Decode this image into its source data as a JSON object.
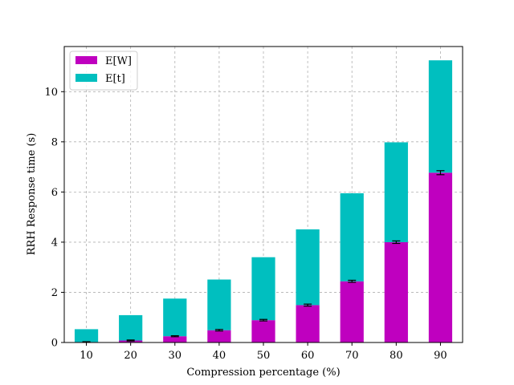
{
  "chart_data": {
    "type": "bar",
    "stacked": true,
    "categories": [
      "10",
      "20",
      "30",
      "40",
      "50",
      "60",
      "70",
      "80",
      "90"
    ],
    "series": [
      {
        "name": "E[W]",
        "color": "#bf00bf",
        "values": [
          0.02,
          0.08,
          0.25,
          0.49,
          0.89,
          1.49,
          2.44,
          4.0,
          6.77
        ],
        "error": [
          0.01,
          0.02,
          0.02,
          0.03,
          0.03,
          0.04,
          0.04,
          0.05,
          0.08
        ]
      },
      {
        "name": "E[t]",
        "color": "#00bfbf",
        "values": [
          0.51,
          1.01,
          1.5,
          2.02,
          2.51,
          3.02,
          3.51,
          3.98,
          4.48
        ]
      }
    ],
    "xlabel": "Compression percentage (%)",
    "ylabel": "RRH Response time (s)",
    "ylim": [
      0,
      11.8
    ],
    "yticks": [
      0,
      2,
      4,
      6,
      8,
      10
    ],
    "grid": true,
    "legend_position": "top-left"
  }
}
